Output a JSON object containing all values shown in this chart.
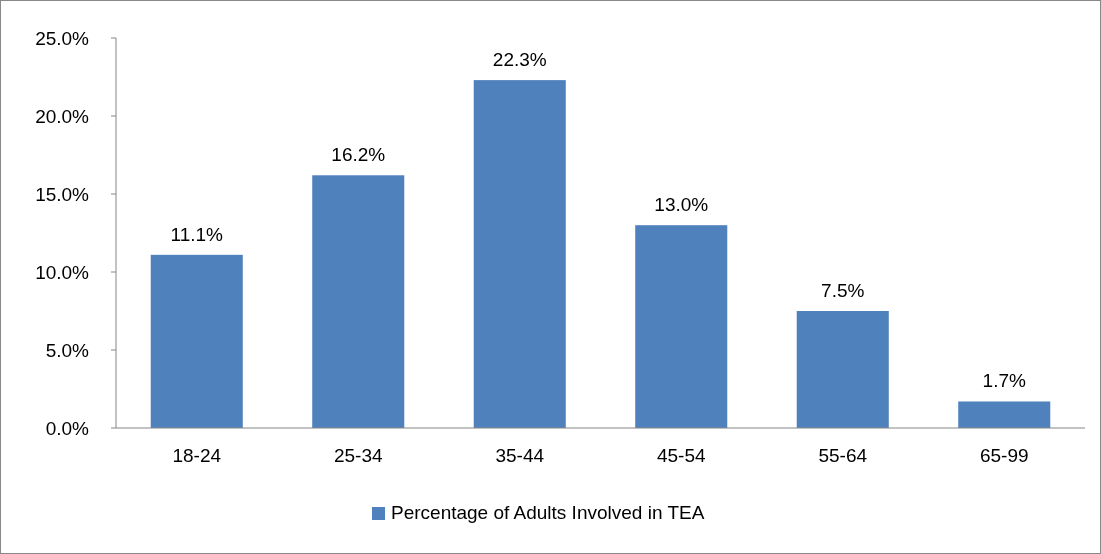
{
  "chart_data": {
    "type": "bar",
    "categories": [
      "18-24",
      "25-34",
      "35-44",
      "45-54",
      "55-64",
      "65-99"
    ],
    "series": [
      {
        "name": "Percentage of Adults Involved in TEA",
        "color": "#4f81bd",
        "values": [
          11.1,
          16.2,
          22.3,
          13.0,
          7.5,
          1.7
        ],
        "value_labels": [
          "11.1%",
          "16.2%",
          "22.3%",
          "13.0%",
          "7.5%",
          "1.7%"
        ]
      }
    ],
    "ylim": [
      0,
      25
    ],
    "yticks": [
      {
        "value": 0,
        "label": "0.0%"
      },
      {
        "value": 5,
        "label": "5.0%"
      },
      {
        "value": 10,
        "label": "10.0%"
      },
      {
        "value": 15,
        "label": "15.0%"
      },
      {
        "value": 20,
        "label": "20.0%"
      },
      {
        "value": 25,
        "label": "25.0%"
      }
    ],
    "grid": false,
    "legend": "bottom"
  }
}
